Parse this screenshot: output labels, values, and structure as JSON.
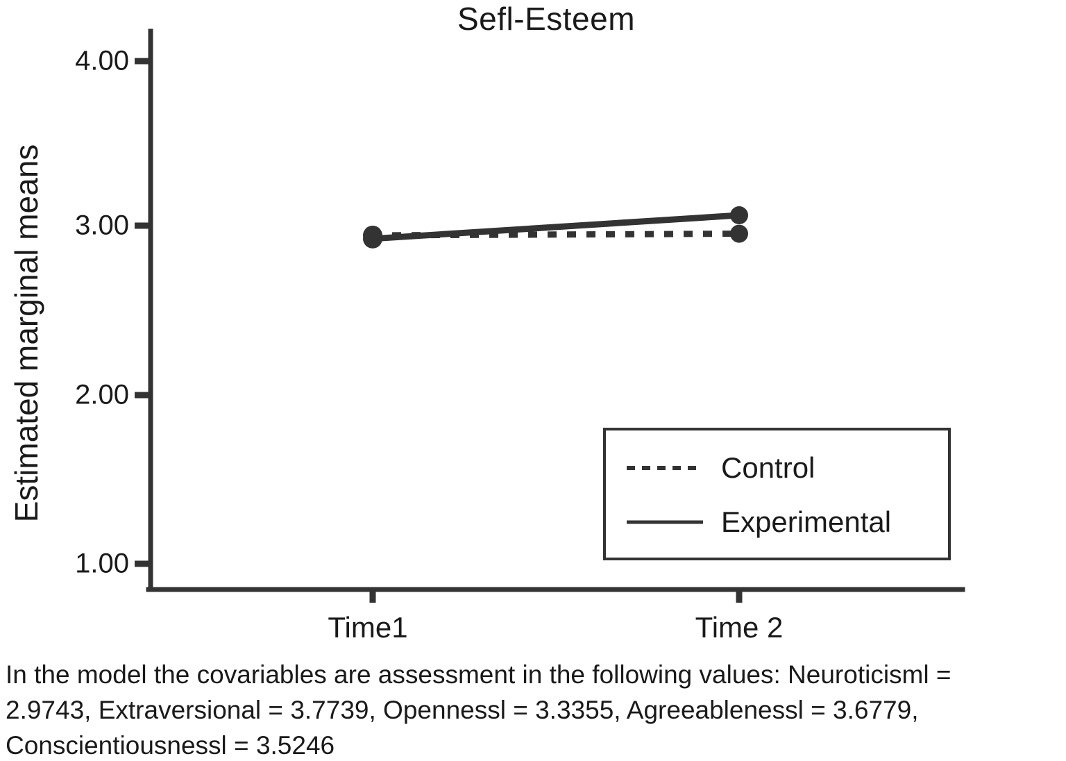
{
  "chart_data": {
    "type": "line",
    "title": "Sefl-Esteem",
    "xlabel": "",
    "ylabel": "Estimated marginal means",
    "categories": [
      "Time1",
      "Time 2"
    ],
    "y_tick_labels": [
      "4.00",
      "3.00",
      "2.00",
      "1.00"
    ],
    "y_tick_values": [
      4.0,
      3.0,
      2.0,
      1.0
    ],
    "ylim": [
      0.85,
      4.18
    ],
    "grid": false,
    "legend_position": "inside-bottom-right",
    "series": [
      {
        "name": "Control",
        "line_style": "dashed",
        "marker": "circle",
        "values": [
          2.96,
          2.97
        ]
      },
      {
        "name": "Experimental",
        "line_style": "solid",
        "marker": "circle",
        "values": [
          2.94,
          3.08
        ]
      }
    ],
    "note_lines": [
      "In the model the covariables are assessment in the following values: Neuroticisml =",
      "2.9743, Extraversional = 3.7739, Opennessl = 3.3355, Agreeablenessl = 3.6779,",
      "Conscientiousnessl = 3.5246"
    ]
  },
  "colors": {
    "line": "#333333",
    "text": "#1a1a1a",
    "background": "#ffffff"
  }
}
